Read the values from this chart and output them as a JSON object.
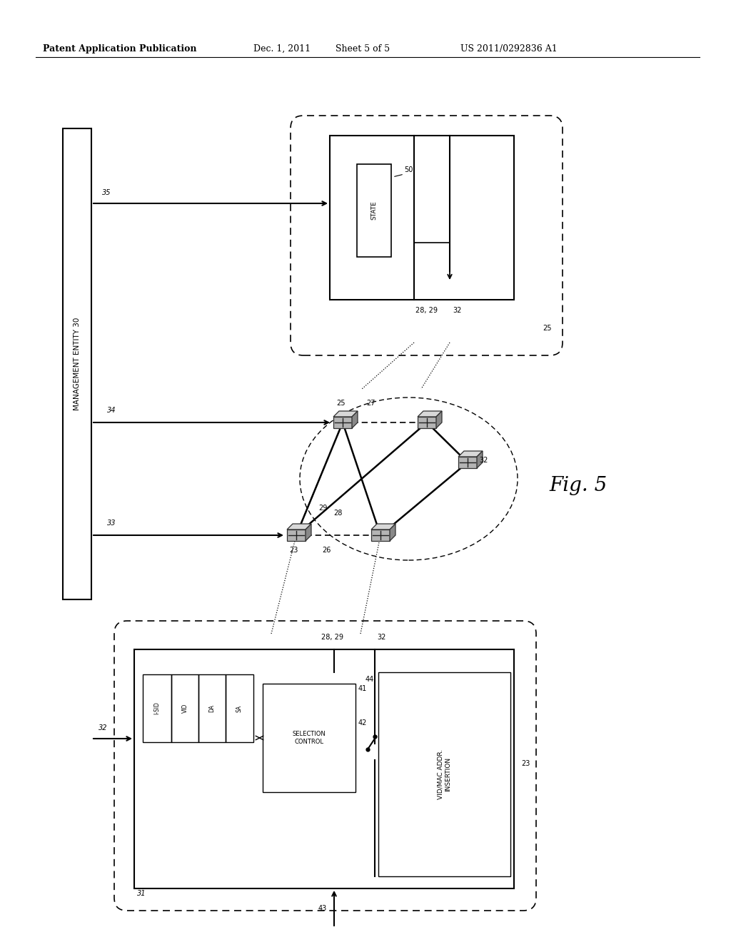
{
  "bg_color": "#ffffff",
  "header_text": "Patent Application Publication",
  "header_date": "Dec. 1, 2011",
  "header_sheet": "Sheet 5 of 5",
  "header_patent": "US 2011/0292836 A1",
  "fig_label": "Fig. 5",
  "management_entity_label": "MANAGEMENT ENTITY 30"
}
